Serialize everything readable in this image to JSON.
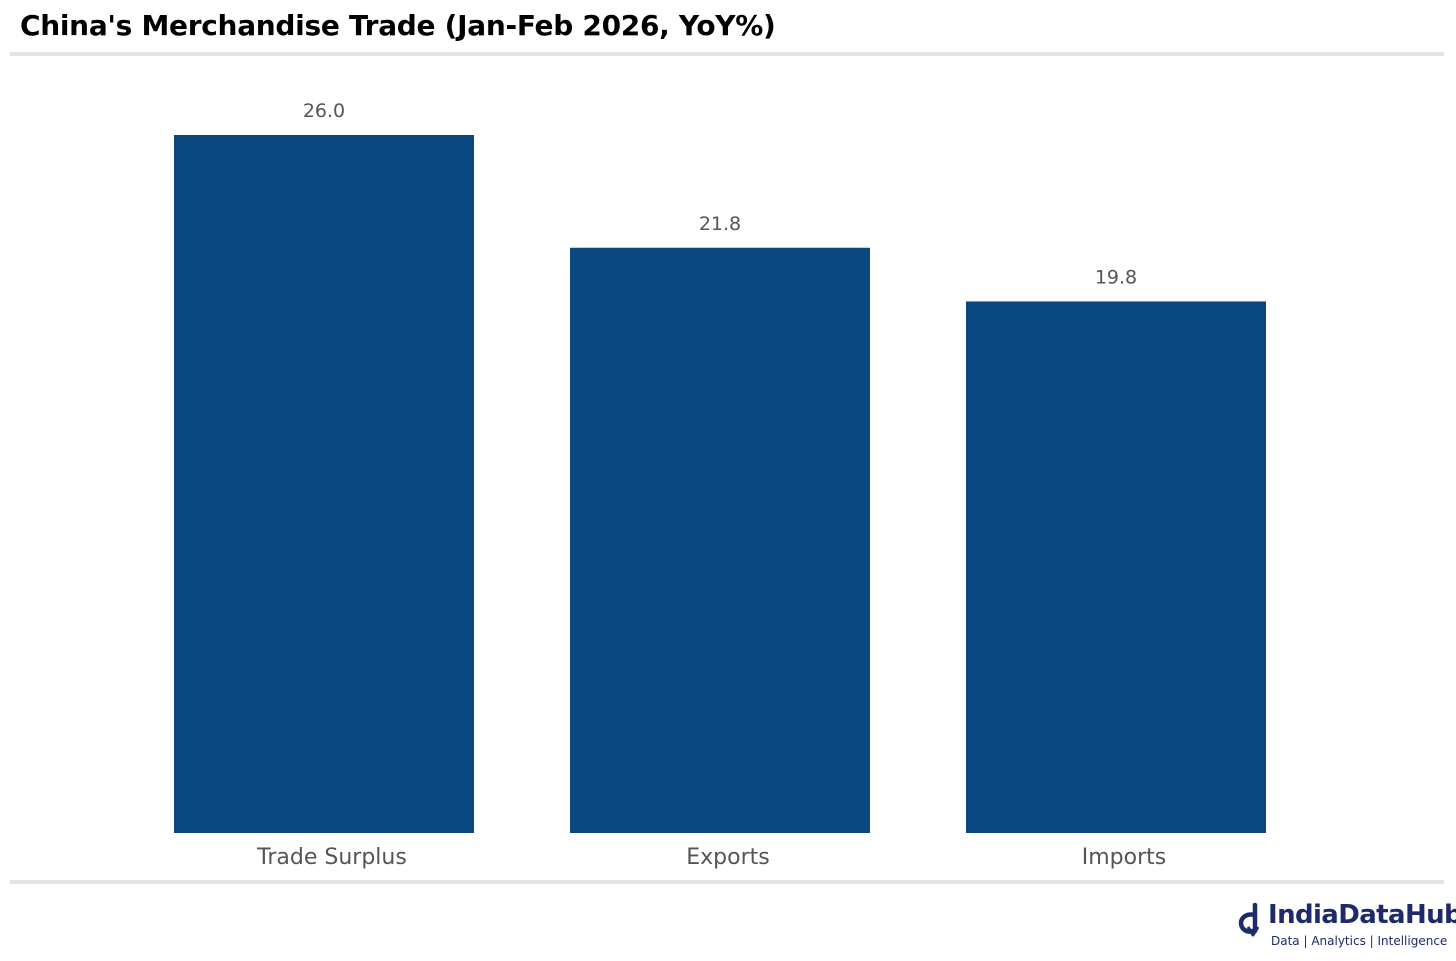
{
  "title": "China's Merchandise Trade (Jan-Feb 2026, YoY%)",
  "colors": {
    "bar": "#0b4780",
    "label_text": "#555555",
    "rule": "#e3e3e3",
    "brand": "#1f2a6b"
  },
  "chart_data": {
    "type": "bar",
    "title": "China's Merchandise Trade (Jan-Feb 2026, YoY%)",
    "categories": [
      "Trade Surplus",
      "Exports",
      "Imports"
    ],
    "values": [
      26.0,
      21.8,
      19.8
    ],
    "data_labels": [
      "26.0",
      "21.8",
      "19.8"
    ],
    "xlabel": "",
    "ylabel": "",
    "ylim": [
      0,
      26.0
    ],
    "grid": false,
    "legend": "none"
  },
  "logo": {
    "name": "IndiaDataHub",
    "tagline": "Data | Analytics | Intelligence",
    "icon": "indiadatahub-logo-icon"
  }
}
